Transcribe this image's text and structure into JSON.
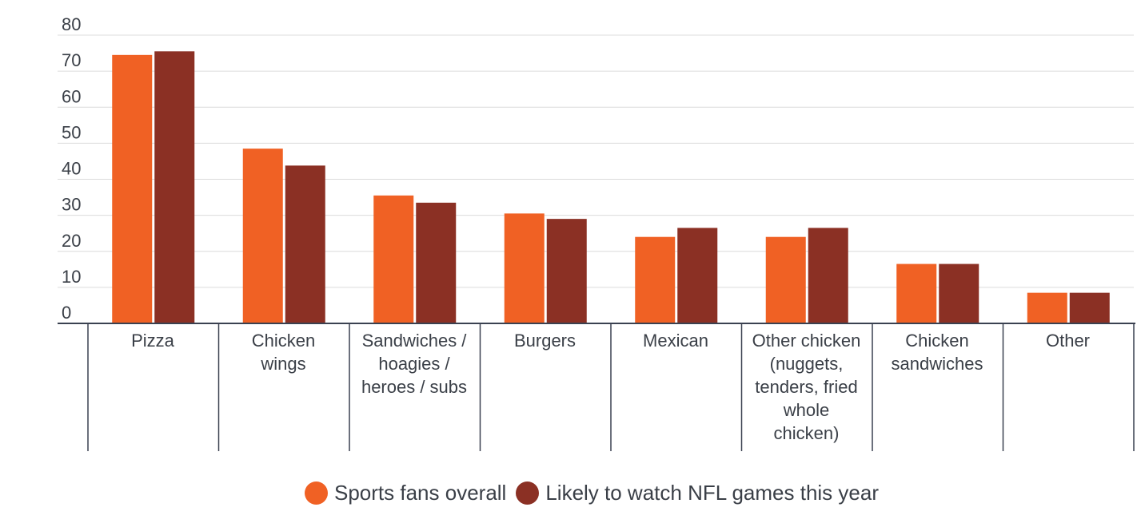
{
  "chart_data": {
    "type": "bar",
    "categories": [
      [
        "Pizza"
      ],
      [
        "Chicken",
        "wings"
      ],
      [
        "Sandwiches /",
        "hoagies /",
        "heroes / subs"
      ],
      [
        "Burgers"
      ],
      [
        "Mexican"
      ],
      [
        "Other chicken",
        "(nuggets,",
        "tenders, fried",
        "whole",
        "chicken)"
      ],
      [
        "Chicken",
        "sandwiches"
      ],
      [
        "Other"
      ]
    ],
    "series": [
      {
        "name": "Sports fans overall",
        "color": "#f06124",
        "values": [
          74.5,
          48.5,
          35.5,
          30.5,
          24,
          24,
          16.5,
          8.5
        ]
      },
      {
        "name": "Likely to watch NFL games this year",
        "color": "#8b3024",
        "values": [
          75.5,
          43.8,
          33.5,
          29,
          26.5,
          26.5,
          16.5,
          8.5
        ]
      }
    ],
    "yticks": [
      "0",
      "10",
      "20",
      "30",
      "40",
      "50",
      "60",
      "70",
      "80"
    ],
    "ylim": [
      0,
      80
    ],
    "grid": true,
    "legend_position": "bottom-center",
    "title": "",
    "xlabel": "",
    "ylabel": ""
  }
}
